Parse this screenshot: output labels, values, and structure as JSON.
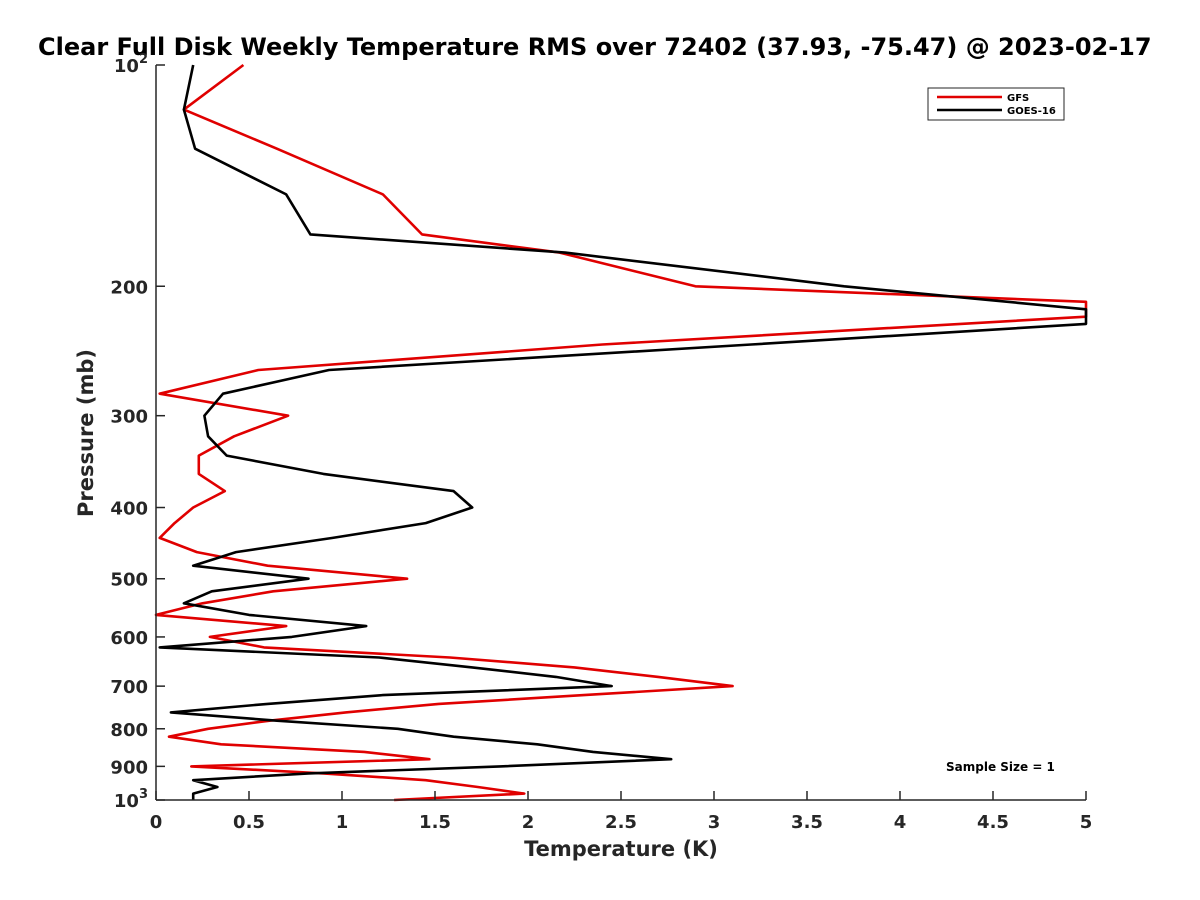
{
  "chart_data": {
    "type": "line",
    "title": "Clear Full Disk Weekly Temperature RMS over 72402 (37.93, -75.47) @ 2023-02-17",
    "xlabel": "Temperature (K)",
    "ylabel": "Pressure (mb)",
    "xlim": [
      0,
      5
    ],
    "ylim": [
      100,
      1000
    ],
    "y_scale": "log",
    "y_reversed": true,
    "grid": false,
    "legend_position": "top-right",
    "x_ticks": [
      0,
      0.5,
      1,
      1.5,
      2,
      2.5,
      3,
      3.5,
      4,
      4.5,
      5
    ],
    "x_tick_labels": [
      "0",
      "0.5",
      "1",
      "1.5",
      "2",
      "2.5",
      "3",
      "3.5",
      "4",
      "4.5",
      "5"
    ],
    "y_ticks": [
      100,
      200,
      300,
      400,
      500,
      600,
      700,
      800,
      900,
      1000
    ],
    "y_tick_labels": [
      {
        "base": "10",
        "exp": "2"
      },
      {
        "base": "200",
        "exp": ""
      },
      {
        "base": "300",
        "exp": ""
      },
      {
        "base": "400",
        "exp": ""
      },
      {
        "base": "500",
        "exp": ""
      },
      {
        "base": "600",
        "exp": ""
      },
      {
        "base": "700",
        "exp": ""
      },
      {
        "base": "800",
        "exp": ""
      },
      {
        "base": "900",
        "exp": ""
      },
      {
        "base": "10",
        "exp": "3"
      }
    ],
    "annotation": "Sample Size = 1",
    "series": [
      {
        "name": "GFS",
        "color": "#e00000",
        "points": [
          [
            0.47,
            100
          ],
          [
            0.15,
            115
          ],
          [
            0.65,
            130
          ],
          [
            1.22,
            150
          ],
          [
            1.43,
            170
          ],
          [
            2.17,
            180
          ],
          [
            2.9,
            200
          ],
          [
            5.0,
            210
          ],
          [
            5.0,
            220
          ],
          [
            2.4,
            240
          ],
          [
            0.55,
            260
          ],
          [
            0.02,
            280
          ],
          [
            0.71,
            300
          ],
          [
            0.42,
            320
          ],
          [
            0.23,
            340
          ],
          [
            0.23,
            360
          ],
          [
            0.37,
            380
          ],
          [
            0.2,
            400
          ],
          [
            0.1,
            420
          ],
          [
            0.02,
            440
          ],
          [
            0.22,
            460
          ],
          [
            0.6,
            480
          ],
          [
            1.35,
            500
          ],
          [
            0.63,
            520
          ],
          [
            0.25,
            540
          ],
          [
            0.0,
            560
          ],
          [
            0.7,
            580
          ],
          [
            0.29,
            600
          ],
          [
            0.58,
            620
          ],
          [
            1.58,
            640
          ],
          [
            2.25,
            660
          ],
          [
            2.7,
            680
          ],
          [
            3.1,
            700
          ],
          [
            2.3,
            720
          ],
          [
            1.52,
            740
          ],
          [
            1.02,
            760
          ],
          [
            0.61,
            780
          ],
          [
            0.28,
            800
          ],
          [
            0.07,
            820
          ],
          [
            0.35,
            840
          ],
          [
            1.12,
            860
          ],
          [
            1.47,
            880
          ],
          [
            0.19,
            900
          ],
          [
            0.9,
            920
          ],
          [
            1.45,
            940
          ],
          [
            1.73,
            960
          ],
          [
            1.98,
            980
          ],
          [
            1.28,
            1000
          ]
        ]
      },
      {
        "name": "GOES-16",
        "color": "#000000",
        "points": [
          [
            0.2,
            100
          ],
          [
            0.15,
            115
          ],
          [
            0.21,
            130
          ],
          [
            0.7,
            150
          ],
          [
            0.83,
            170
          ],
          [
            2.2,
            180
          ],
          [
            3.7,
            200
          ],
          [
            5.0,
            215
          ],
          [
            5.0,
            225
          ],
          [
            3.2,
            240
          ],
          [
            0.93,
            260
          ],
          [
            0.36,
            280
          ],
          [
            0.26,
            300
          ],
          [
            0.28,
            320
          ],
          [
            0.38,
            340
          ],
          [
            0.9,
            360
          ],
          [
            1.6,
            380
          ],
          [
            1.7,
            400
          ],
          [
            1.45,
            420
          ],
          [
            0.95,
            440
          ],
          [
            0.43,
            460
          ],
          [
            0.2,
            480
          ],
          [
            0.82,
            500
          ],
          [
            0.3,
            520
          ],
          [
            0.15,
            540
          ],
          [
            0.5,
            560
          ],
          [
            1.13,
            580
          ],
          [
            0.73,
            600
          ],
          [
            0.02,
            620
          ],
          [
            1.2,
            640
          ],
          [
            1.7,
            660
          ],
          [
            2.15,
            680
          ],
          [
            2.45,
            700
          ],
          [
            1.22,
            720
          ],
          [
            0.6,
            740
          ],
          [
            0.08,
            760
          ],
          [
            0.65,
            780
          ],
          [
            1.3,
            800
          ],
          [
            1.6,
            820
          ],
          [
            2.05,
            840
          ],
          [
            2.35,
            860
          ],
          [
            2.77,
            880
          ],
          [
            1.85,
            900
          ],
          [
            0.82,
            920
          ],
          [
            0.2,
            940
          ],
          [
            0.33,
            960
          ],
          [
            0.2,
            980
          ],
          [
            0.2,
            1000
          ]
        ]
      }
    ]
  }
}
